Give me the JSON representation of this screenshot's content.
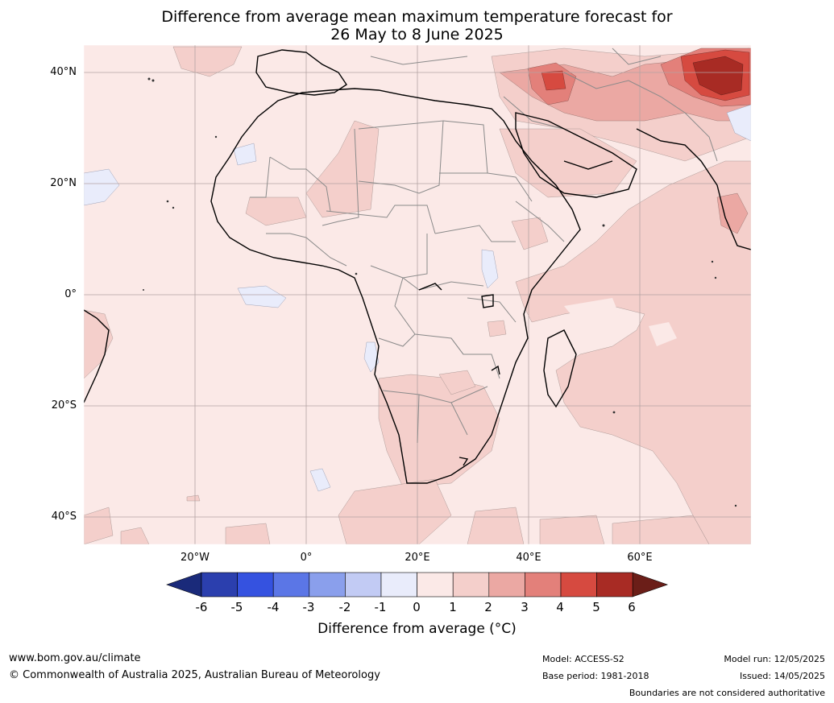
{
  "title": {
    "line1": "Difference from average mean maximum temperature forecast for",
    "line2": "26 May to 8 June 2025"
  },
  "map": {
    "lat_labels": [
      "40°N",
      "20°N",
      "0°",
      "20°S",
      "40°S"
    ],
    "lon_labels": [
      "20°W",
      "0°",
      "20°E",
      "40°E",
      "60°E"
    ]
  },
  "colorbar": {
    "ticks": [
      "-6",
      "-5",
      "-4",
      "-3",
      "-2",
      "-1",
      "0",
      "1",
      "2",
      "3",
      "4",
      "5",
      "6"
    ],
    "colors": [
      "#1a2a7a",
      "#2b3fae",
      "#3552e0",
      "#5b76e6",
      "#8a9fec",
      "#c2cbf4",
      "#e9ecfb",
      "#fbe9e7",
      "#f4cfcb",
      "#eba8a3",
      "#e3807a",
      "#d64a40",
      "#a82b24",
      "#6b1e18"
    ],
    "label": "Difference from average (°C)"
  },
  "footer": {
    "website": "www.bom.gov.au/climate",
    "copyright": "© Commonwealth of Australia 2025, Australian Bureau of Meteorology",
    "model": "Model: ACCESS-S2",
    "base_period": "Base period: 1981-2018",
    "model_run": "Model run: 12/05/2025",
    "issued": "Issued: 14/05/2025",
    "disclaimer": "Boundaries are not considered authoritative"
  }
}
